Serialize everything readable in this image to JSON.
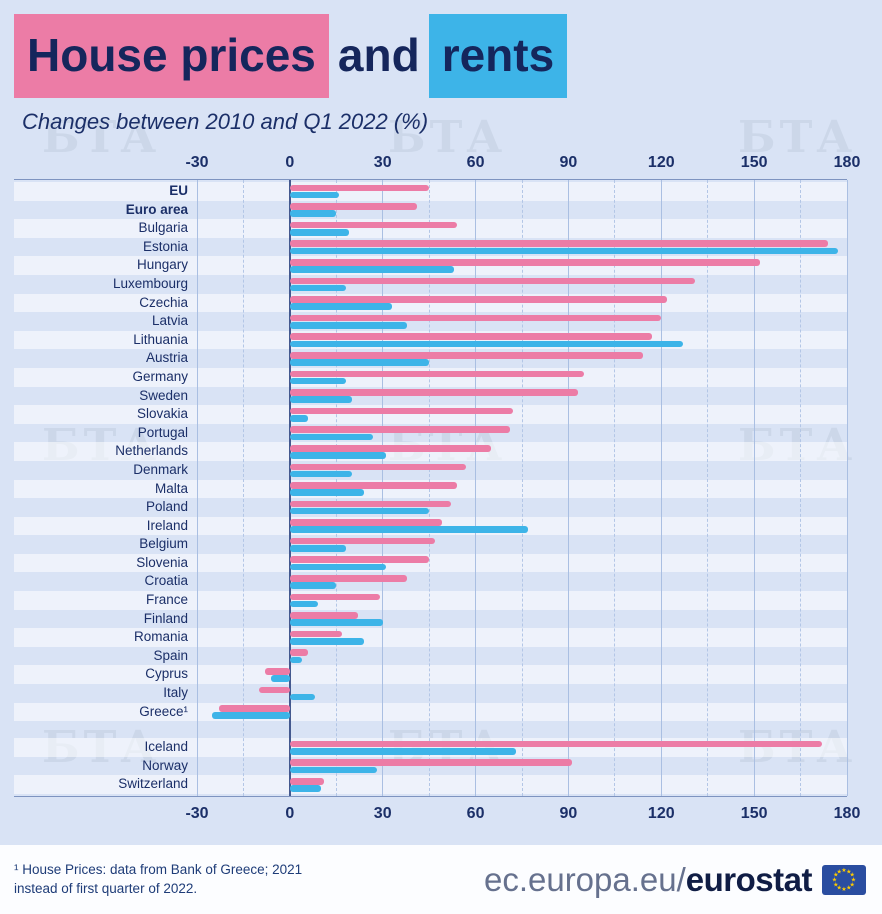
{
  "title": {
    "part1": "House prices",
    "part2": "and",
    "part3": "rents"
  },
  "subtitle": "Changes between 2010 and Q1 2022 (%)",
  "watermark": {
    "text": "БТА"
  },
  "footnote": {
    "line1": "¹ House Prices: data from Bank of Greece; 2021",
    "line2": "instead of first quarter of 2022."
  },
  "brand": {
    "prefix": "ec.europa.eu/",
    "bold": "eurostat"
  },
  "colors": {
    "house_prices": "#ec7ca6",
    "rents": "#3db4e8",
    "background": "#d9e3f5",
    "text": "#1b2f68",
    "grid": "#aabfe2",
    "zero_line": "#44598f",
    "footer_background": "#fcfdff",
    "flag_blue": "#2a4da0",
    "flag_star_yellow": "#ffcc00"
  },
  "chart_data": {
    "type": "bar",
    "orientation": "horizontal",
    "title": "House prices and rents",
    "subtitle": "Changes between 2010 and Q1 2022 (%)",
    "unit": "%",
    "xlim": [
      -30,
      180
    ],
    "x_ticks": [
      -30,
      0,
      30,
      60,
      90,
      120,
      150,
      180
    ],
    "grid": "major solid, midpoint dashed",
    "legend": "encoded in title highlight colors (pink = house prices, blue = rents)",
    "series": [
      {
        "name": "House prices",
        "color": "#ec7ca6"
      },
      {
        "name": "Rents",
        "color": "#3db4e8"
      }
    ],
    "groups": [
      {
        "rows": [
          {
            "label": "EU",
            "bold": true,
            "values": [
              45,
              16
            ]
          },
          {
            "label": "Euro area",
            "bold": true,
            "values": [
              41,
              15
            ]
          },
          {
            "label": "Bulgaria",
            "values": [
              54,
              19
            ]
          },
          {
            "label": "Estonia",
            "values": [
              174,
              177
            ]
          },
          {
            "label": "Hungary",
            "values": [
              152,
              53
            ]
          },
          {
            "label": "Luxembourg",
            "values": [
              131,
              18
            ]
          },
          {
            "label": "Czechia",
            "values": [
              122,
              33
            ]
          },
          {
            "label": "Latvia",
            "values": [
              120,
              38
            ]
          },
          {
            "label": "Lithuania",
            "values": [
              117,
              127
            ]
          },
          {
            "label": "Austria",
            "values": [
              114,
              45
            ]
          },
          {
            "label": "Germany",
            "values": [
              95,
              18
            ]
          },
          {
            "label": "Sweden",
            "values": [
              93,
              20
            ]
          },
          {
            "label": "Slovakia",
            "values": [
              72,
              6
            ]
          },
          {
            "label": "Portugal",
            "values": [
              71,
              27
            ]
          },
          {
            "label": "Netherlands",
            "values": [
              65,
              31
            ]
          },
          {
            "label": "Denmark",
            "values": [
              57,
              20
            ]
          },
          {
            "label": "Malta",
            "values": [
              54,
              24
            ]
          },
          {
            "label": "Poland",
            "values": [
              52,
              45
            ]
          },
          {
            "label": "Ireland",
            "values": [
              49,
              77
            ]
          },
          {
            "label": "Belgium",
            "values": [
              47,
              18
            ]
          },
          {
            "label": "Slovenia",
            "values": [
              45,
              31
            ]
          },
          {
            "label": "Croatia",
            "values": [
              38,
              15
            ]
          },
          {
            "label": "France",
            "values": [
              29,
              9
            ]
          },
          {
            "label": "Finland",
            "values": [
              22,
              30
            ]
          },
          {
            "label": "Romania",
            "values": [
              17,
              24
            ]
          },
          {
            "label": "Spain",
            "values": [
              6,
              4
            ]
          },
          {
            "label": "Cyprus",
            "values": [
              -8,
              -6
            ]
          },
          {
            "label": "Italy",
            "values": [
              -10,
              8
            ]
          },
          {
            "label": "Greece¹",
            "values": [
              -23,
              -25
            ]
          }
        ]
      },
      {
        "rows": [
          {
            "label": "Iceland",
            "values": [
              172,
              73
            ]
          },
          {
            "label": "Norway",
            "values": [
              91,
              28
            ]
          },
          {
            "label": "Switzerland",
            "values": [
              11,
              10
            ]
          }
        ]
      }
    ]
  }
}
